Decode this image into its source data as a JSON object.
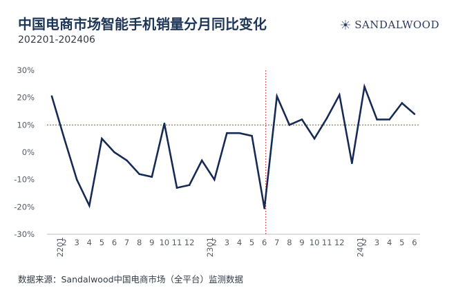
{
  "header": {
    "title": "中国电商市场智能手机销量分月同比变化",
    "subtitle": "202201-202406",
    "brand": "SANDALWOOD"
  },
  "footer": {
    "source": "数据来源：Sandalwood中国电商市场（全平台）监测数据"
  },
  "chart_data": {
    "type": "line",
    "title": "中国电商市场智能手机销量分月同比变化",
    "subtitle": "202201-202406",
    "categories": [
      "2201",
      "2",
      "3",
      "4",
      "5",
      "6",
      "7",
      "8",
      "9",
      "10",
      "11",
      "12",
      "2301",
      "2",
      "3",
      "4",
      "5",
      "6",
      "7",
      "8",
      "9",
      "10",
      "11",
      "12",
      "2401",
      "2",
      "3",
      "4",
      "5",
      "6"
    ],
    "series": [
      {
        "values": [
          20.5,
          5,
          -10,
          -19.5,
          5,
          0,
          -3,
          -8,
          -9,
          10.5,
          -13,
          -12,
          -3,
          -10,
          7,
          7,
          6,
          -20.5,
          20.5,
          10,
          12,
          5,
          12.5,
          21,
          -4,
          24,
          12,
          12,
          18,
          14
        ]
      }
    ],
    "y_ticks": [
      "30%",
      "20%",
      "10%",
      "0%",
      "-10%",
      "-20%",
      "-30%"
    ],
    "ylim": [
      -30,
      30
    ],
    "reference_line_y": 10,
    "reference_line_x_category": "6",
    "reference_line_x_index": 17,
    "grid": false,
    "colors": {
      "line": "#172a55",
      "reference": "#d9363e",
      "axis": "#bfbfbf"
    }
  }
}
